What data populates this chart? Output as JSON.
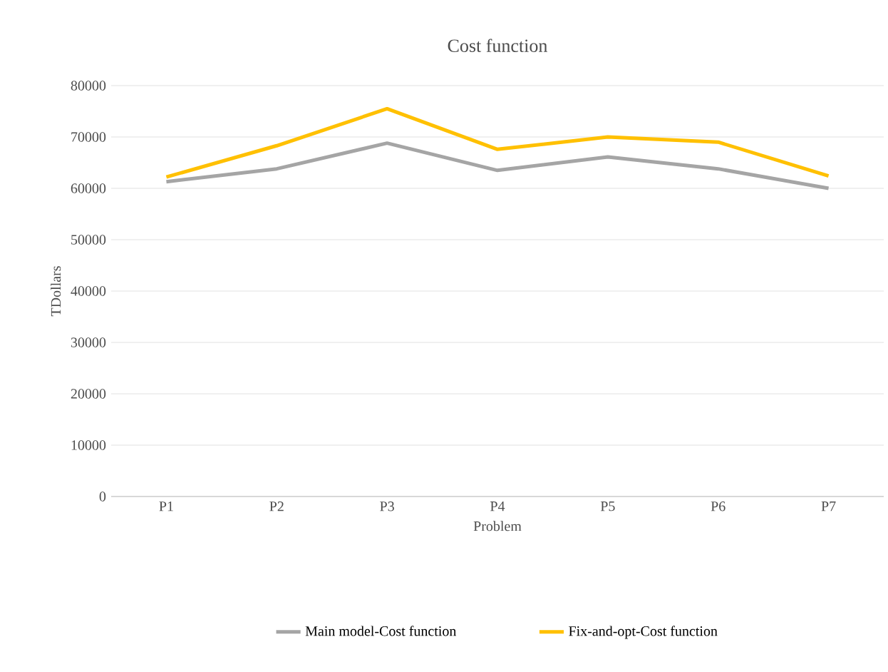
{
  "chart_data": {
    "type": "line",
    "title": "Cost function",
    "xlabel": "Problem",
    "ylabel": "TDollars",
    "categories": [
      "P1",
      "P2",
      "P3",
      "P4",
      "P5",
      "P6",
      "P7"
    ],
    "series": [
      {
        "name": "Main model-Cost function",
        "color": "#a5a5a5",
        "values": [
          61300,
          63800,
          68800,
          63500,
          66100,
          63800,
          60000
        ]
      },
      {
        "name": "Fix-and-opt-Cost function",
        "color": "#ffc000",
        "values": [
          62200,
          68300,
          75500,
          67600,
          70000,
          69000,
          62400
        ]
      }
    ],
    "ylim": [
      0,
      80000
    ],
    "yticks": [
      0,
      10000,
      20000,
      30000,
      40000,
      50000,
      60000,
      70000,
      80000
    ],
    "grid": "y",
    "legend": "bottom",
    "marker": "none",
    "line_style": "solid"
  }
}
